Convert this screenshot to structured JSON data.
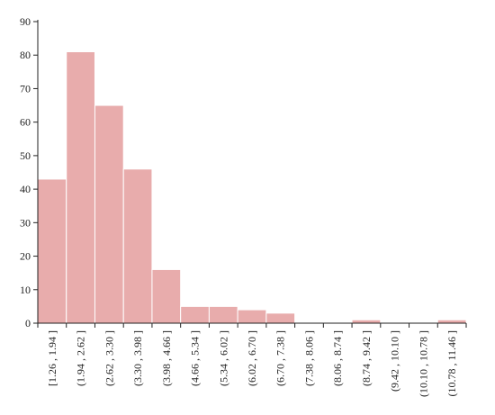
{
  "chart_data": {
    "type": "bar",
    "title": "",
    "xlabel": "",
    "ylabel": "",
    "categories": [
      "[1.26 , 1.94 ]",
      "(1.94 , 2.62 ]",
      "(2.62 , 3.30 ]",
      "(3.30 , 3.98 ]",
      "(3.98 , 4.66 ]",
      "(4.66 , 5.34 ]",
      "(5.34 , 6.02 ]",
      "(6.02 , 6.70 ]",
      "(6.70 , 7.38 ]",
      "(7.38 , 8.06 ]",
      "(8.06 , 8.74 ]",
      "(8.74 , 9.42 ]",
      "(9.42 , 10.10 ]",
      "(10.10 , 10.78 ]",
      "(10.78 , 11.46 ]"
    ],
    "values": [
      43,
      81,
      65,
      46,
      16,
      5,
      5,
      4,
      3,
      0,
      0,
      1,
      0,
      0,
      1
    ],
    "yticks": [
      0,
      10,
      20,
      30,
      40,
      50,
      60,
      70,
      80,
      90
    ],
    "ylim": [
      0,
      90
    ],
    "grid": false,
    "bar_color": "#e8acac"
  }
}
